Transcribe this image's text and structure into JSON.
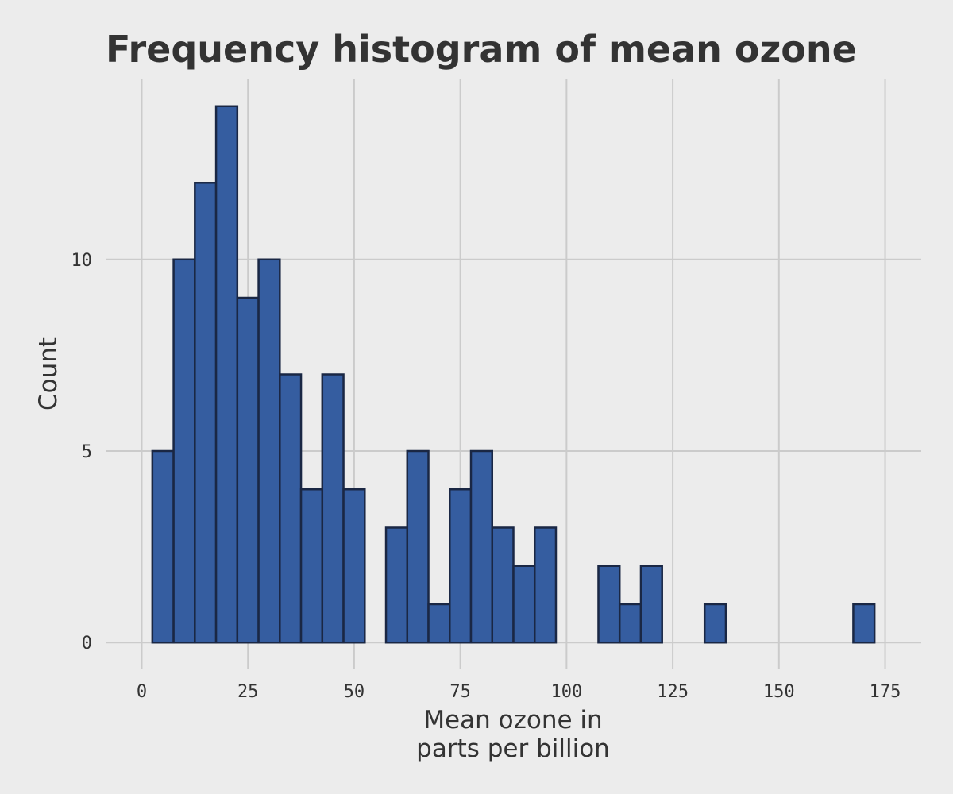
{
  "chart_data": {
    "type": "bar",
    "title": "Frequency histogram of mean ozone",
    "xlabel_lines": [
      "Mean ozone in",
      "parts per billion"
    ],
    "ylabel": "Count",
    "bin_width": 5,
    "bins": [
      {
        "x0": 2.5,
        "x1": 7.5,
        "count": 5
      },
      {
        "x0": 7.5,
        "x1": 12.5,
        "count": 10
      },
      {
        "x0": 12.5,
        "x1": 17.5,
        "count": 12
      },
      {
        "x0": 17.5,
        "x1": 22.5,
        "count": 14
      },
      {
        "x0": 22.5,
        "x1": 27.5,
        "count": 9
      },
      {
        "x0": 27.5,
        "x1": 32.5,
        "count": 10
      },
      {
        "x0": 32.5,
        "x1": 37.5,
        "count": 7
      },
      {
        "x0": 37.5,
        "x1": 42.5,
        "count": 4
      },
      {
        "x0": 42.5,
        "x1": 47.5,
        "count": 7
      },
      {
        "x0": 47.5,
        "x1": 52.5,
        "count": 4
      },
      {
        "x0": 52.5,
        "x1": 57.5,
        "count": 0
      },
      {
        "x0": 57.5,
        "x1": 62.5,
        "count": 3
      },
      {
        "x0": 62.5,
        "x1": 67.5,
        "count": 5
      },
      {
        "x0": 67.5,
        "x1": 72.5,
        "count": 1
      },
      {
        "x0": 72.5,
        "x1": 77.5,
        "count": 4
      },
      {
        "x0": 77.5,
        "x1": 82.5,
        "count": 5
      },
      {
        "x0": 82.5,
        "x1": 87.5,
        "count": 3
      },
      {
        "x0": 87.5,
        "x1": 92.5,
        "count": 2
      },
      {
        "x0": 92.5,
        "x1": 97.5,
        "count": 3
      },
      {
        "x0": 97.5,
        "x1": 102.5,
        "count": 0
      },
      {
        "x0": 102.5,
        "x1": 107.5,
        "count": 0
      },
      {
        "x0": 107.5,
        "x1": 112.5,
        "count": 2
      },
      {
        "x0": 112.5,
        "x1": 117.5,
        "count": 1
      },
      {
        "x0": 117.5,
        "x1": 122.5,
        "count": 2
      },
      {
        "x0": 122.5,
        "x1": 127.5,
        "count": 0
      },
      {
        "x0": 127.5,
        "x1": 132.5,
        "count": 0
      },
      {
        "x0": 132.5,
        "x1": 137.5,
        "count": 1
      },
      {
        "x0": 137.5,
        "x1": 142.5,
        "count": 0
      },
      {
        "x0": 142.5,
        "x1": 147.5,
        "count": 0
      },
      {
        "x0": 147.5,
        "x1": 152.5,
        "count": 0
      },
      {
        "x0": 152.5,
        "x1": 157.5,
        "count": 0
      },
      {
        "x0": 157.5,
        "x1": 162.5,
        "count": 0
      },
      {
        "x0": 162.5,
        "x1": 167.5,
        "count": 0
      },
      {
        "x0": 167.5,
        "x1": 172.5,
        "count": 1
      }
    ],
    "xlim": [
      -8.5,
      183.5
    ],
    "ylim": [
      -0.7,
      14.7
    ],
    "x_ticks": [
      0,
      25,
      50,
      75,
      100,
      125,
      150,
      175
    ],
    "x_tick_labels": [
      "0",
      "25",
      "50",
      "75",
      "100",
      "125",
      "150",
      "175"
    ],
    "y_ticks": [
      0,
      5,
      10
    ],
    "y_tick_labels": [
      "0",
      "5",
      "10"
    ],
    "grid": true,
    "legend": "none",
    "colors": {
      "background": "#ececec",
      "bar_fill": "#355da0",
      "bar_stroke": "#1a2744",
      "grid": "#cbcbcb",
      "text": "#333333"
    }
  }
}
